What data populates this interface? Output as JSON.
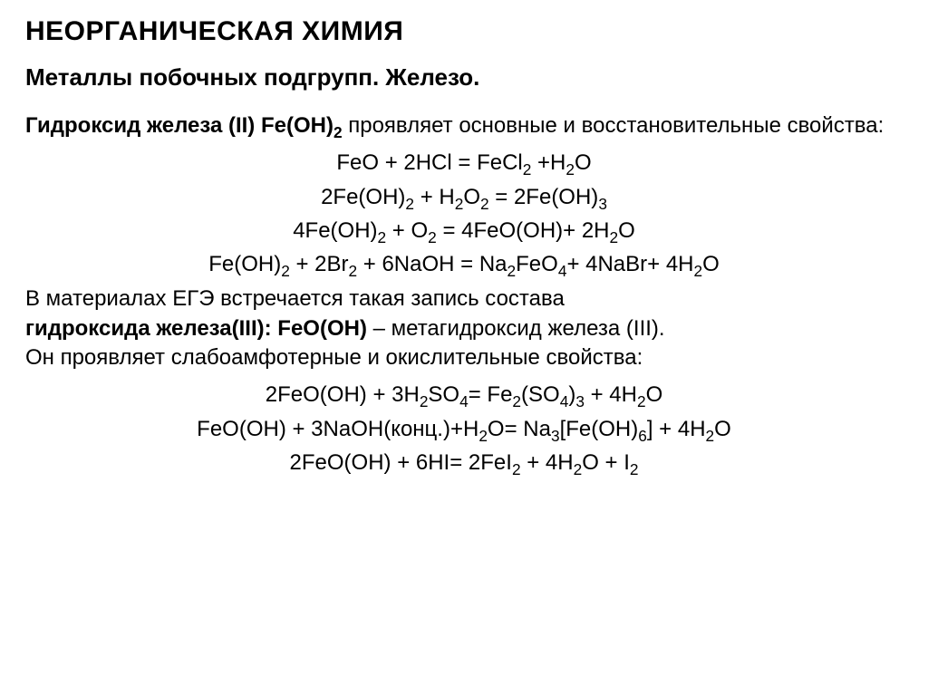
{
  "title": "НЕОРГАНИЧЕСКАЯ ХИМИЯ",
  "subtitle": "Металлы побочных подгрупп. Железо.",
  "intro": {
    "prefix": "Гидроксид железа (II) Fe(OH)",
    "sub1": "2",
    "suffix": " проявляет основные и восстановительные свойства:"
  },
  "equations1": {
    "eq1": {
      "parts": [
        "FeO + 2HCl = FeCl",
        "2",
        " +H",
        "2",
        "O"
      ]
    },
    "eq2": {
      "parts": [
        "2Fe(OH)",
        "2",
        " + H",
        "2",
        "O",
        "2",
        " = 2Fe(OH)",
        "3"
      ]
    },
    "eq3": {
      "parts": [
        "4Fe(OH)",
        "2",
        " + O",
        "2",
        " = 4FeO(OH)+ 2H",
        "2",
        "O"
      ]
    },
    "eq4": {
      "parts": [
        "Fe(OH)",
        "2",
        " + 2Br",
        "2",
        " + 6NaOH = Na",
        "2",
        "FeO",
        "4",
        "+ 4NaBr+ 4H",
        "2",
        "O"
      ]
    }
  },
  "middle": {
    "line1a": "В материалах ЕГЭ встречается такая запись состава",
    "line2bold": "гидроксида железа(III): FeO(OH)",
    "line2rest": " – метагидроксид железа (III).",
    "line3": "Он проявляет слабоамфотерные и окислительные свойства:"
  },
  "equations2": {
    "eq5": {
      "parts": [
        "2FeO(OH) + 3H",
        "2",
        "SO",
        "4",
        "= Fe",
        "2",
        "(SO",
        "4",
        ")",
        "3",
        " + 4H",
        "2",
        "O"
      ]
    },
    "eq6": {
      "parts": [
        "FeO(OH) +  3NaOH(конц.)+H",
        "2",
        "O= Na",
        "3",
        "[Fe(OH)",
        "6",
        "] + 4H",
        "2",
        "O"
      ]
    },
    "eq7": {
      "parts": [
        "2FeO(OH) + 6HI= 2FeI",
        "2",
        " + 4H",
        "2",
        "O + I",
        "2"
      ]
    }
  },
  "style": {
    "background_color": "#ffffff",
    "text_color": "#000000",
    "title_fontsize": 30,
    "subtitle_fontsize": 26,
    "body_fontsize": 24,
    "font_family": "Arial"
  }
}
